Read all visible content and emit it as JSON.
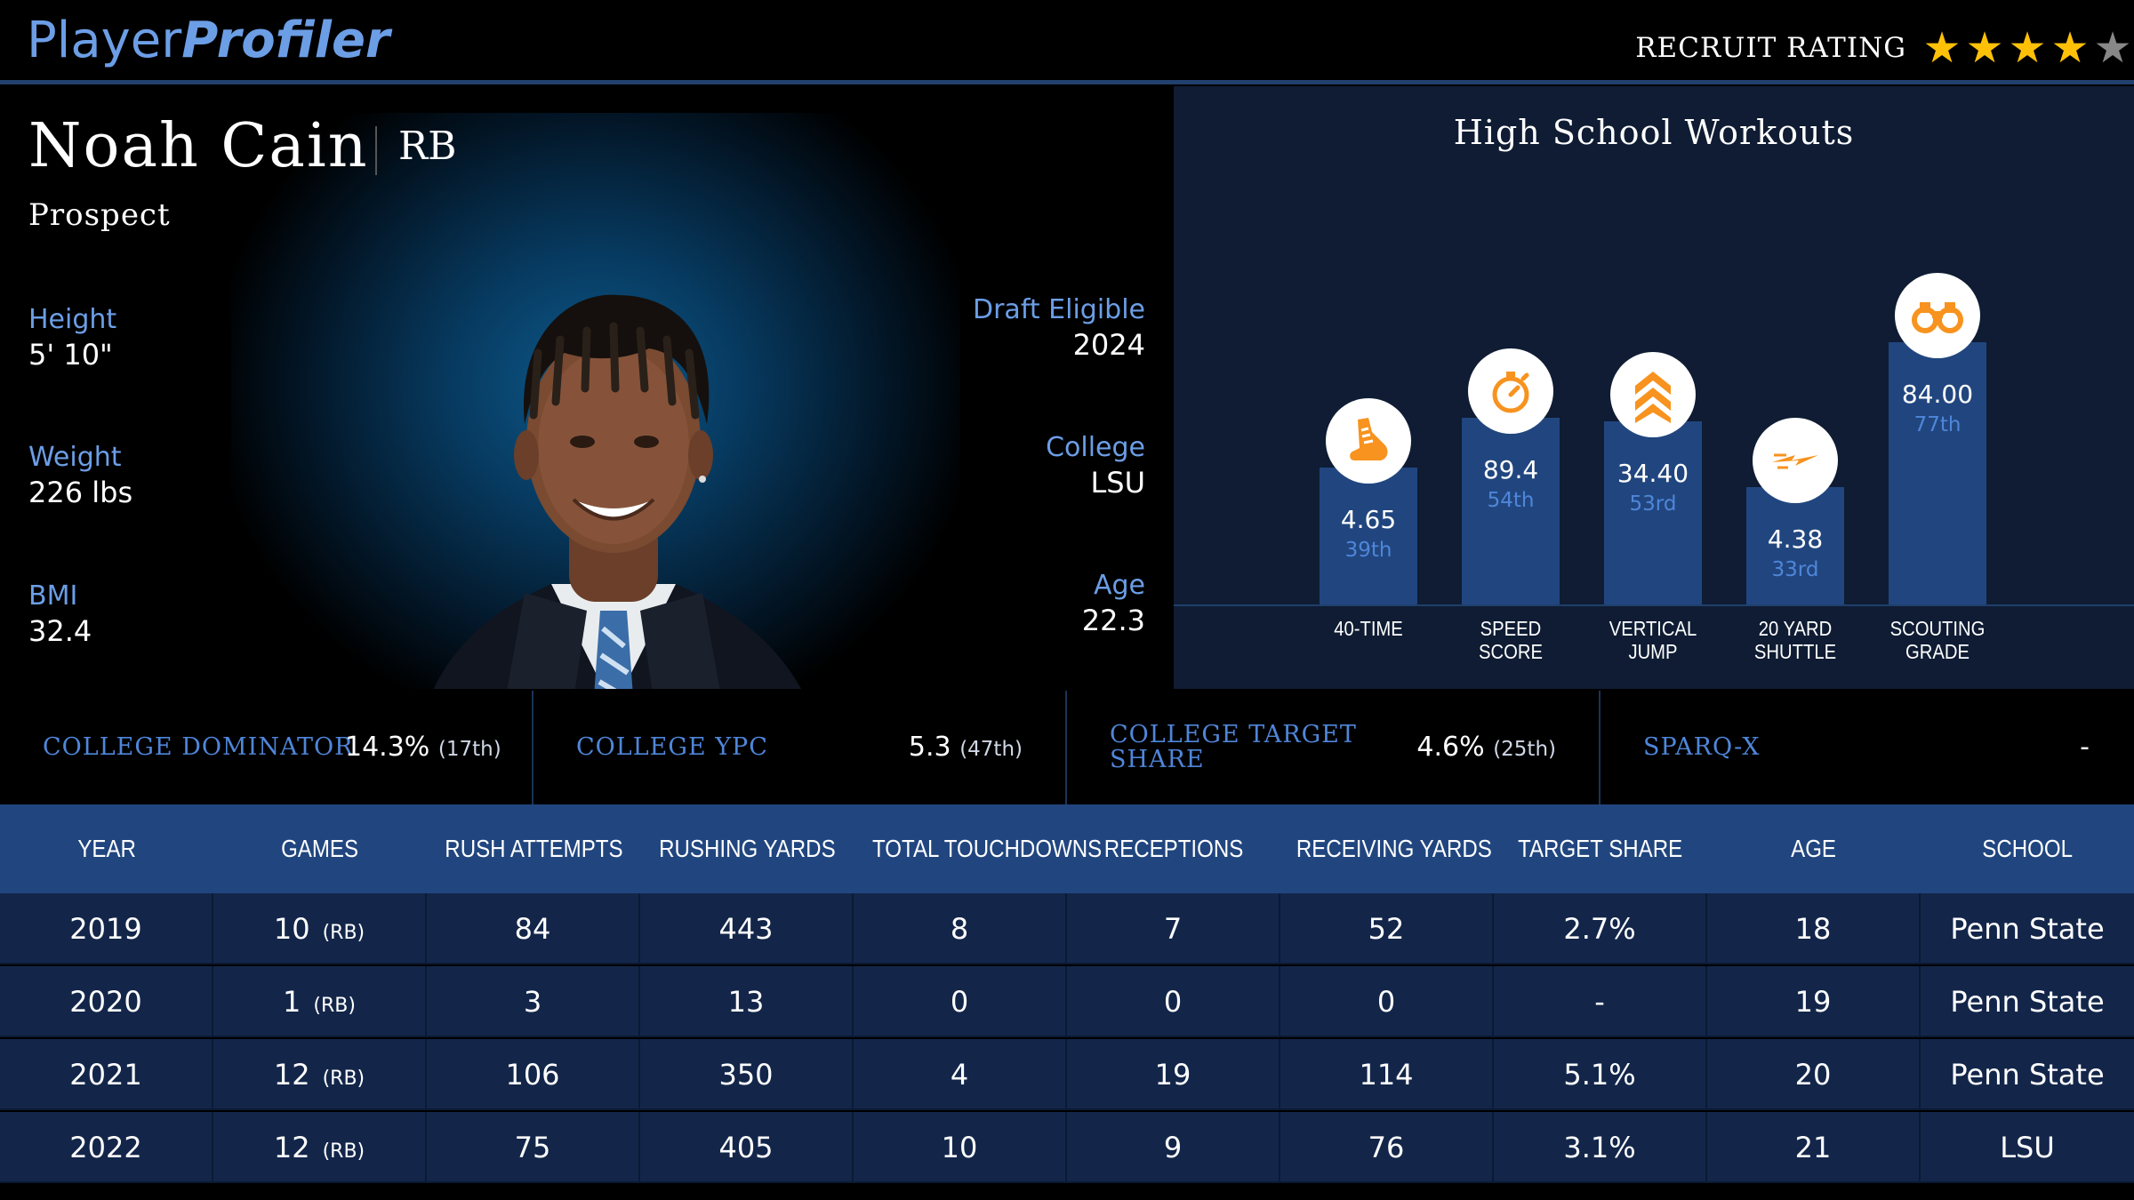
{
  "header": {
    "logo_part1": "Player",
    "logo_part2": "Profiler",
    "recruit_label": "RECRUIT RATING",
    "recruit_stars": 4,
    "recruit_stars_max": 5,
    "star_color": "#ffc107",
    "star_empty_color": "#888888"
  },
  "player": {
    "name": "Noah Cain",
    "position": "RB",
    "status": "Prospect",
    "height_label": "Height",
    "height": "5' 10\"",
    "weight_label": "Weight",
    "weight": "226 lbs",
    "bmi_label": "BMI",
    "bmi": "32.4",
    "draft_label": "Draft Eligible",
    "draft": "2024",
    "college_label": "College",
    "college": "LSU",
    "age_label": "Age",
    "age": "22.3"
  },
  "workouts": {
    "title": "High School Workouts",
    "icon_color": "#f7931e",
    "items": [
      {
        "label1": "40-TIME",
        "label2": "",
        "value": "4.65",
        "percentile": "39th",
        "pct": 39,
        "icon": "running-shoe-icon"
      },
      {
        "label1": "SPEED",
        "label2": "SCORE",
        "value": "89.4",
        "percentile": "54th",
        "pct": 54,
        "icon": "stopwatch-icon"
      },
      {
        "label1": "VERTICAL",
        "label2": "JUMP",
        "value": "34.40",
        "percentile": "53rd",
        "pct": 53,
        "icon": "chevrons-up-icon"
      },
      {
        "label1": "20 YARD",
        "label2": "SHUTTLE",
        "value": "4.38",
        "percentile": "33rd",
        "pct": 33,
        "icon": "lightning-icon"
      },
      {
        "label1": "SCOUTING",
        "label2": "GRADE",
        "value": "84.00",
        "percentile": "77th",
        "pct": 77,
        "icon": "binoculars-icon"
      }
    ]
  },
  "metrics": [
    {
      "label": "COLLEGE DOMINATOR",
      "value": "14.3%",
      "rank": "(17th)"
    },
    {
      "label": "COLLEGE YPC",
      "value": "5.3",
      "rank": "(47th)"
    },
    {
      "label": "COLLEGE TARGET SHARE",
      "value": "4.6%",
      "rank": "(25th)"
    },
    {
      "label": "SPARQ-X",
      "value": "-",
      "rank": ""
    }
  ],
  "table": {
    "headers": [
      "YEAR",
      "GAMES",
      "RUSH ATTEMPTS",
      "RUSHING YARDS",
      "TOTAL TOUCHDOWNS",
      "RECEPTIONS",
      "RECEIVING YARDS",
      "TARGET SHARE",
      "AGE",
      "SCHOOL"
    ],
    "rows": [
      {
        "year": "2019",
        "games": "10",
        "games_pos": "(RB)",
        "rush_att": "84",
        "rush_yds": "443",
        "td": "8",
        "rec": "7",
        "rec_yds": "52",
        "target_share": "2.7%",
        "age": "18",
        "school": "Penn State"
      },
      {
        "year": "2020",
        "games": "1",
        "games_pos": "(RB)",
        "rush_att": "3",
        "rush_yds": "13",
        "td": "0",
        "rec": "0",
        "rec_yds": "0",
        "target_share": "-",
        "age": "19",
        "school": "Penn State"
      },
      {
        "year": "2021",
        "games": "12",
        "games_pos": "(RB)",
        "rush_att": "106",
        "rush_yds": "350",
        "td": "4",
        "rec": "19",
        "rec_yds": "114",
        "target_share": "5.1%",
        "age": "20",
        "school": "Penn State"
      },
      {
        "year": "2022",
        "games": "12",
        "games_pos": "(RB)",
        "rush_att": "75",
        "rush_yds": "405",
        "td": "10",
        "rec": "9",
        "rec_yds": "76",
        "target_share": "3.1%",
        "age": "21",
        "school": "LSU"
      }
    ]
  }
}
